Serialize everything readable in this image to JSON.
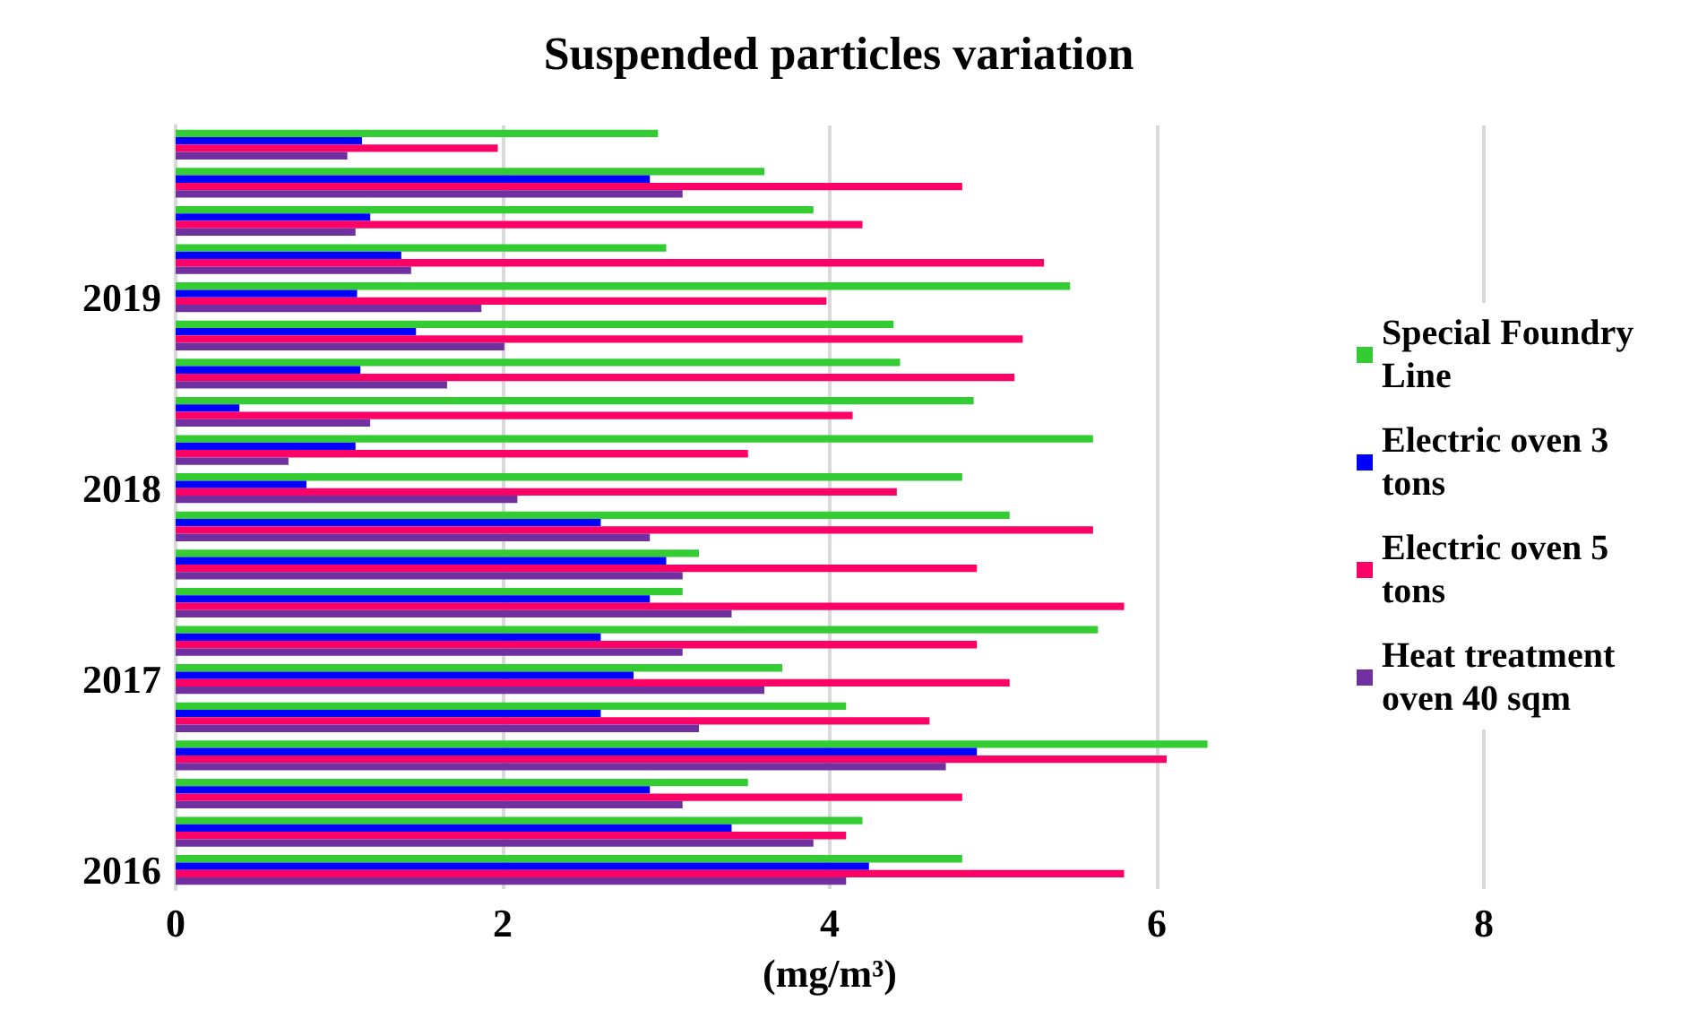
{
  "chart_data": {
    "type": "bar",
    "orientation": "horizontal",
    "title": "Suspended particles variation",
    "xlabel": "(mg/m³)",
    "categories": [
      null,
      null,
      null,
      null,
      "2019",
      null,
      null,
      null,
      null,
      "2018",
      null,
      null,
      null,
      null,
      "2017",
      null,
      null,
      null,
      null,
      "2016"
    ],
    "series": [
      {
        "name": "Special Foundry Line",
        "color": "#33cc33",
        "values": [
          2.95,
          3.6,
          3.9,
          3.0,
          5.47,
          4.39,
          4.43,
          4.88,
          5.61,
          4.81,
          5.1,
          3.2,
          3.1,
          5.64,
          3.71,
          4.1,
          6.31,
          3.5,
          4.2,
          4.81
        ]
      },
      {
        "name": "Electric oven 3 tons",
        "color": "#0000ff",
        "values": [
          1.14,
          2.9,
          1.19,
          1.38,
          1.11,
          1.47,
          1.13,
          0.39,
          1.1,
          0.8,
          2.6,
          3.0,
          2.9,
          2.6,
          2.8,
          2.6,
          4.9,
          2.9,
          3.4,
          4.24
        ]
      },
      {
        "name": "Electric oven 5 tons",
        "color": "#ff0066",
        "values": [
          1.97,
          4.81,
          4.2,
          5.31,
          3.98,
          5.18,
          5.13,
          4.14,
          3.5,
          4.41,
          5.61,
          4.9,
          5.8,
          4.9,
          5.1,
          4.61,
          6.06,
          4.81,
          4.1,
          5.8
        ]
      },
      {
        "name": "Heat treatment oven 40 sqm",
        "color": "#7030a0",
        "values": [
          1.05,
          3.1,
          1.1,
          1.44,
          1.87,
          2.01,
          1.66,
          1.19,
          0.69,
          2.09,
          2.9,
          3.1,
          3.4,
          3.1,
          3.6,
          3.2,
          4.71,
          3.1,
          3.9,
          4.1
        ]
      }
    ],
    "xlim": [
      0,
      8
    ],
    "xticks": [
      0,
      2,
      4,
      6,
      8
    ],
    "grid": "x",
    "legend": "right"
  }
}
